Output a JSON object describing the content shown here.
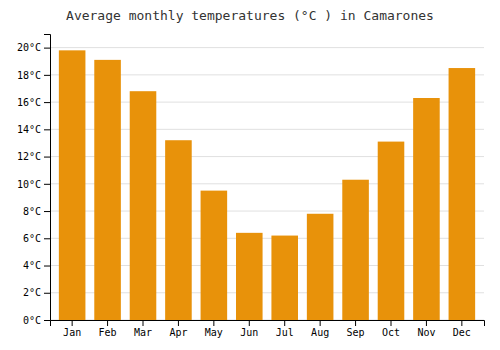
{
  "chart_data": {
    "type": "bar",
    "title": "Average monthly temperatures (°C ) in Camarones",
    "categories": [
      "Jan",
      "Feb",
      "Mar",
      "Apr",
      "May",
      "Jun",
      "Jul",
      "Aug",
      "Sep",
      "Oct",
      "Nov",
      "Dec"
    ],
    "values": [
      19.8,
      19.1,
      16.8,
      13.2,
      9.5,
      6.4,
      6.2,
      7.8,
      10.3,
      13.1,
      16.3,
      18.5
    ],
    "color": "#E8920A",
    "ylim": [
      0,
      21
    ],
    "yticks": [
      {
        "value": 0,
        "label": "0°C"
      },
      {
        "value": 2,
        "label": "2°C"
      },
      {
        "value": 4,
        "label": "4°C"
      },
      {
        "value": 6,
        "label": "6°C"
      },
      {
        "value": 8,
        "label": "8°C"
      },
      {
        "value": 10,
        "label": "10°C"
      },
      {
        "value": 12,
        "label": "12°C"
      },
      {
        "value": 14,
        "label": "14°C"
      },
      {
        "value": 16,
        "label": "16°C"
      },
      {
        "value": 18,
        "label": "18°C"
      },
      {
        "value": 20,
        "label": "20°C"
      }
    ],
    "grid": true
  }
}
